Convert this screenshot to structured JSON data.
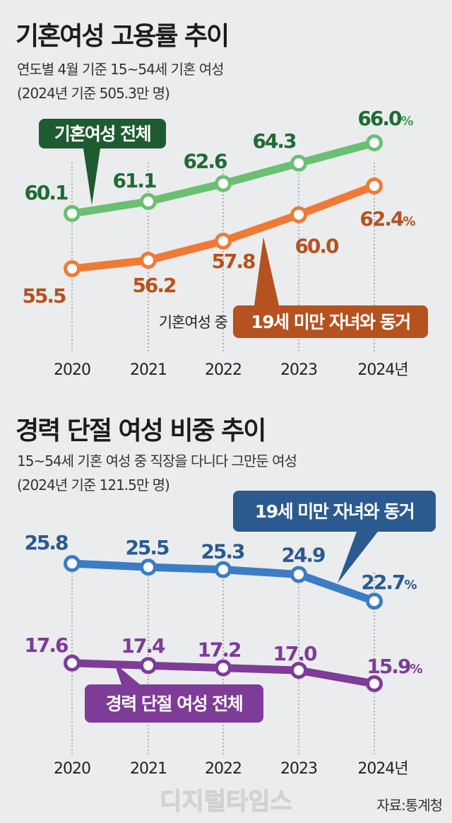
{
  "chart_data": [
    {
      "type": "line",
      "title": "기혼여성 고용률 추이",
      "subtitle": "연도별 4월 기준 15~54세 기혼 여성",
      "note": "(2024년 기준 505.3만 명)",
      "categories": [
        "2020",
        "2021",
        "2022",
        "2023",
        "2024년"
      ],
      "unit": "%",
      "series": [
        {
          "name": "기혼여성 전체",
          "values": [
            60.1,
            61.1,
            62.6,
            64.3,
            66.0
          ],
          "labels": [
            "60.1",
            "61.1",
            "62.6",
            "64.3",
            "66.0"
          ],
          "color": "#6abf73",
          "label_color": "#1e6b35",
          "box_color": "#1e5b30"
        },
        {
          "name": "19세 미만 자녀와 동거",
          "prefix": "기혼여성 중",
          "values": [
            55.5,
            56.2,
            57.8,
            60.0,
            62.4
          ],
          "labels": [
            "55.5",
            "56.2",
            "57.8",
            "60.0",
            "62.4"
          ],
          "color": "#f07a35",
          "label_color": "#b5521f",
          "box_color": "#b5521f"
        }
      ]
    },
    {
      "type": "line",
      "title": "경력 단절 여성 비중 추이",
      "subtitle": "15~54세 기혼 여성 중 직장을 다니다 그만둔 여성",
      "note": "(2024년 기준 121.5만 명)",
      "categories": [
        "2020",
        "2021",
        "2022",
        "2023",
        "2024년"
      ],
      "unit": "%",
      "series": [
        {
          "name": "19세 미만 자녀와 동거",
          "values": [
            25.8,
            25.5,
            25.3,
            24.9,
            22.7
          ],
          "labels": [
            "25.8",
            "25.5",
            "25.3",
            "24.9",
            "22.7"
          ],
          "color": "#3b7cc4",
          "label_color": "#2a5a90",
          "box_color": "#2a5a90"
        },
        {
          "name": "경력 단절 여성 전체",
          "values": [
            17.6,
            17.4,
            17.2,
            17.0,
            15.9
          ],
          "labels": [
            "17.6",
            "17.4",
            "17.2",
            "17.0",
            "15.9"
          ],
          "color": "#7e3b98",
          "label_color": "#7e3b98",
          "box_color": "#7e3b98"
        }
      ]
    }
  ],
  "source": "자료:통계청",
  "watermark": "디지털타임스"
}
